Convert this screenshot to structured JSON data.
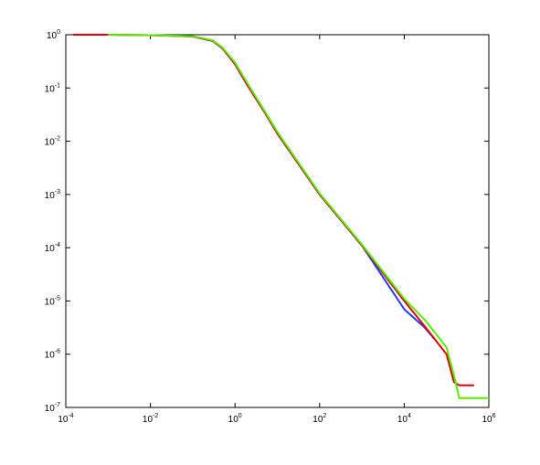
{
  "chart_data": {
    "type": "line",
    "xscale": "log",
    "yscale": "log",
    "xlim": [
      0.0001,
      1000000
    ],
    "ylim": [
      1e-07,
      1
    ],
    "xticks": [
      {
        "value": 0.0001,
        "label": "10^-4"
      },
      {
        "value": 0.01,
        "label": "10^-2"
      },
      {
        "value": 1,
        "label": "10^0"
      },
      {
        "value": 100,
        "label": "10^2"
      },
      {
        "value": 10000,
        "label": "10^4"
      },
      {
        "value": 1000000,
        "label": "10^6"
      }
    ],
    "yticks": [
      {
        "value": 1e-07,
        "label": "10^-7"
      },
      {
        "value": 1e-06,
        "label": "10^-6"
      },
      {
        "value": 1e-05,
        "label": "10^-5"
      },
      {
        "value": 0.0001,
        "label": "10^-4"
      },
      {
        "value": 0.001,
        "label": "10^-3"
      },
      {
        "value": 0.01,
        "label": "10^-2"
      },
      {
        "value": 0.1,
        "label": "10^-1"
      },
      {
        "value": 1,
        "label": "10^0"
      }
    ],
    "series": [
      {
        "color": "#1f3fff",
        "x": [
          0.001,
          0.01,
          0.1,
          0.3,
          0.5,
          1,
          2,
          5,
          10,
          100,
          1000,
          10000,
          30000,
          50000
        ],
        "values": [
          1,
          0.98,
          0.93,
          0.76,
          0.56,
          0.28,
          0.11,
          0.035,
          0.014,
          0.001,
          0.00011,
          7e-06,
          3.2e-06,
          2e-06
        ]
      },
      {
        "color": "#e00000",
        "x": [
          0.00015,
          0.001,
          0.01,
          0.1,
          0.3,
          0.5,
          1,
          2,
          5,
          10,
          100,
          1000,
          10000,
          30000,
          100000,
          150000,
          200000,
          450000
        ],
        "values": [
          1,
          1,
          0.98,
          0.93,
          0.76,
          0.56,
          0.28,
          0.11,
          0.035,
          0.014,
          0.001,
          0.00011,
          1e-05,
          3.4e-06,
          1e-06,
          3e-07,
          2.6e-07,
          2.6e-07
        ]
      },
      {
        "color": "#55ee00",
        "x": [
          0.001,
          0.01,
          0.1,
          0.3,
          0.5,
          1,
          2,
          5,
          10,
          100,
          1000,
          10000,
          30000,
          100000,
          150000,
          200000,
          1000000
        ],
        "values": [
          1,
          0.98,
          0.94,
          0.78,
          0.58,
          0.3,
          0.12,
          0.037,
          0.015,
          0.00105,
          0.000115,
          1.1e-05,
          4.5e-06,
          1.35e-06,
          4e-07,
          1.5e-07,
          1.5e-07
        ]
      }
    ]
  }
}
